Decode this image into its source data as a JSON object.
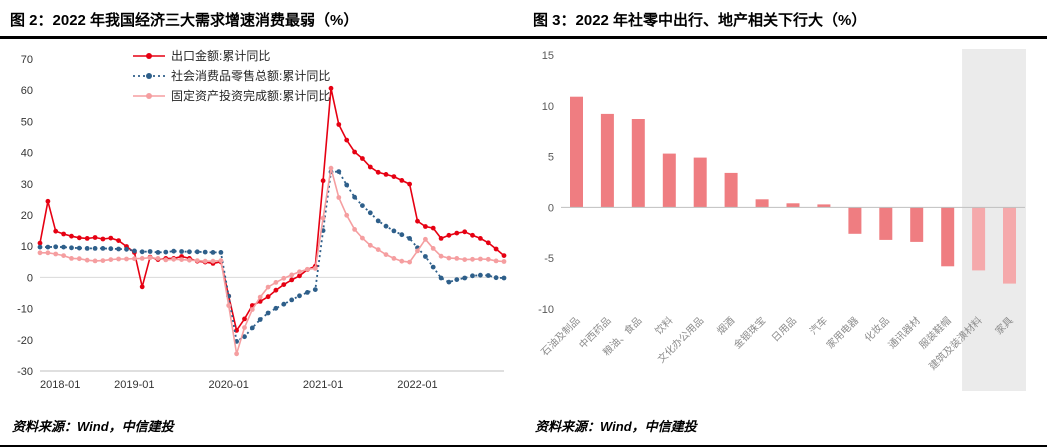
{
  "footer": {
    "sources": [
      "资料来源：Wind，中信建投",
      "资料来源：Wind，中信建投"
    ]
  },
  "chart_data": [
    {
      "type": "line",
      "title": "图 2：2022 年我国经济三大需求增速消费最弱（%）",
      "xlabel": "",
      "ylabel": "",
      "ylim": [
        -30,
        70
      ],
      "yticks": [
        -30,
        -20,
        -10,
        0,
        10,
        20,
        30,
        40,
        50,
        60,
        70
      ],
      "grid": "zero-line-only",
      "legend_position": "top-inside-left",
      "n_points": 60,
      "x_tick_labels": [
        "2018-01",
        "2019-01",
        "2020-01",
        "2021-01",
        "2022-01"
      ],
      "x_tick_positions": [
        0,
        12,
        24,
        36,
        48
      ],
      "series": [
        {
          "name": "出口金额:累计同比",
          "color": "#e60012",
          "style": "solid",
          "values": [
            11.0,
            24.4,
            14.8,
            13.9,
            13.2,
            12.7,
            12.5,
            12.8,
            12.3,
            12.6,
            11.8,
            9.9,
            8.0,
            -3.0,
            6.5,
            5.7,
            6.1,
            6.1,
            6.7,
            6.1,
            5.2,
            4.9,
            4.5,
            5.0,
            -6.0,
            -17.0,
            -13.3,
            -9.0,
            -7.7,
            -6.2,
            -4.1,
            -2.3,
            -0.8,
            0.5,
            2.5,
            3.6,
            31.0,
            60.6,
            49.0,
            44.0,
            40.2,
            38.1,
            35.4,
            33.7,
            33.0,
            32.3,
            31.1,
            29.9,
            18.0,
            16.3,
            15.8,
            12.5,
            13.5,
            14.2,
            14.6,
            13.5,
            12.5,
            11.1,
            9.1,
            7.0
          ]
        },
        {
          "name": "社会消费品零售总额:累计同比",
          "color": "#2e5f8a",
          "style": "dotted",
          "values": [
            9.7,
            9.7,
            9.8,
            9.7,
            9.5,
            9.4,
            9.3,
            9.3,
            9.3,
            9.2,
            9.1,
            9.0,
            8.5,
            8.2,
            8.3,
            8.0,
            8.1,
            8.4,
            8.3,
            8.2,
            8.2,
            8.1,
            8.0,
            8.0,
            -6.0,
            -20.5,
            -19.0,
            -16.2,
            -13.5,
            -11.4,
            -9.9,
            -8.6,
            -7.2,
            -5.9,
            -4.8,
            -3.9,
            15.0,
            33.8,
            33.9,
            29.6,
            25.7,
            23.0,
            20.7,
            18.1,
            16.4,
            14.9,
            13.7,
            12.5,
            9.5,
            6.7,
            3.3,
            -0.2,
            -1.5,
            -0.7,
            -0.2,
            0.5,
            0.7,
            0.6,
            -0.1,
            -0.2
          ]
        },
        {
          "name": "固定资产投资完成额:累计同比",
          "color": "#f59ea0",
          "style": "solid",
          "values": [
            7.9,
            7.9,
            7.5,
            7.0,
            6.1,
            6.0,
            5.5,
            5.3,
            5.4,
            5.7,
            5.9,
            5.9,
            6.0,
            6.1,
            6.3,
            6.1,
            5.6,
            5.8,
            5.7,
            5.5,
            5.4,
            5.2,
            5.2,
            5.4,
            -9.0,
            -24.5,
            -16.1,
            -10.3,
            -6.3,
            -3.1,
            -1.6,
            -0.3,
            0.8,
            1.8,
            2.6,
            2.9,
            19.0,
            35.0,
            25.6,
            19.9,
            15.4,
            12.6,
            10.3,
            8.9,
            7.3,
            6.1,
            5.2,
            4.9,
            8.5,
            12.2,
            9.3,
            6.8,
            6.2,
            6.1,
            5.7,
            5.8,
            5.9,
            5.8,
            5.3,
            5.1
          ]
        }
      ]
    },
    {
      "type": "bar",
      "title": "图 3：2022 年社零中出行、地产相关下行大（%）",
      "xlabel": "",
      "ylabel": "",
      "ylim": [
        -10,
        15
      ],
      "yticks": [
        -10,
        -5,
        0,
        5,
        10,
        15
      ],
      "bar_color": "#ef7d81",
      "highlight": {
        "start_index": 13,
        "end_index": 14,
        "band_color": "#e9e9e9",
        "bar_color": "#f5a9ab"
      },
      "categories": [
        "石油及制品",
        "中西药品",
        "粮油、食品",
        "饮料",
        "文化办公用品",
        "烟酒",
        "金银珠宝",
        "日用品",
        "汽车",
        "家用电器",
        "化妆品",
        "通讯器材",
        "服装鞋帽",
        "建筑及装潢材料",
        "家具"
      ],
      "values": [
        10.9,
        9.2,
        8.7,
        5.3,
        4.9,
        3.4,
        0.8,
        0.4,
        0.3,
        -2.6,
        -3.2,
        -3.4,
        -5.8,
        -6.2,
        -7.5
      ]
    }
  ]
}
